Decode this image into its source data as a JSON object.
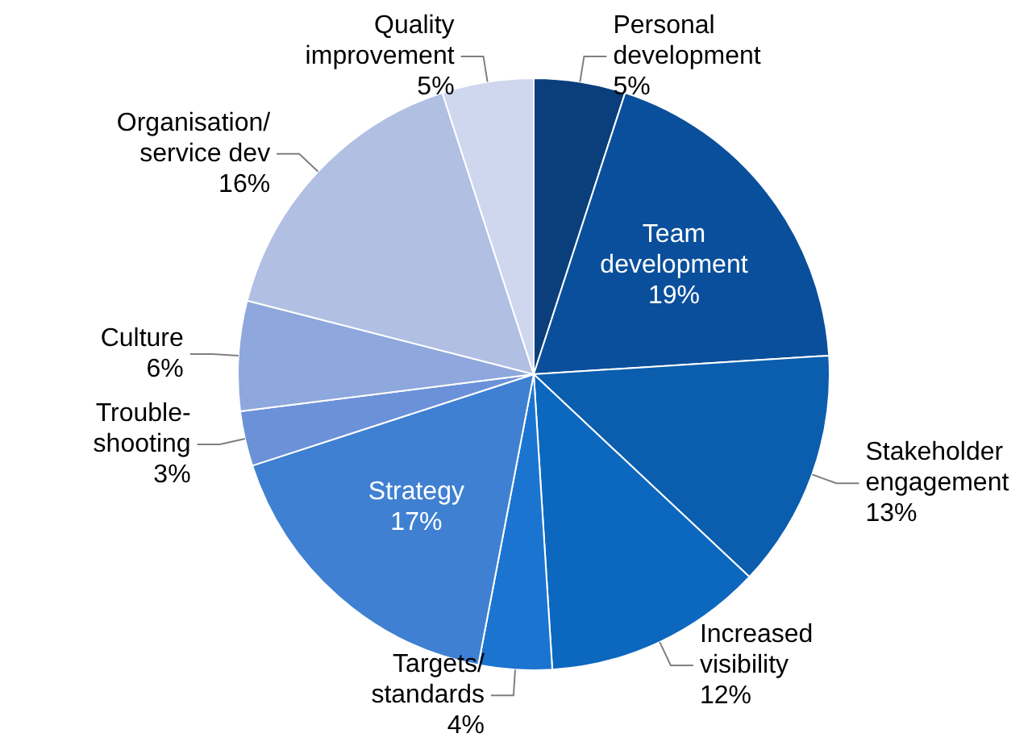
{
  "chart_data": {
    "type": "pie",
    "categories": [
      "Personal development",
      "Team development",
      "Stakeholder engagement",
      "Increased visibility",
      "Targets/standards",
      "Strategy",
      "Trouble-shooting",
      "Culture",
      "Organisation/service dev",
      "Quality improvement"
    ],
    "values": [
      5,
      19,
      13,
      12,
      4,
      17,
      3,
      6,
      16,
      5
    ],
    "value_labels": [
      "5%",
      "19%",
      "13%",
      "12%",
      "4%",
      "17%",
      "3%",
      "6%",
      "16%",
      "5%"
    ],
    "colors": [
      "#0b3f7c",
      "#0a4f9c",
      "#0b5eae",
      "#0c67be",
      "#1b74d0",
      "#3f80d2",
      "#6b91d9",
      "#8ea7dd",
      "#b1bfe3",
      "#cfd7ef"
    ],
    "legend": false
  }
}
